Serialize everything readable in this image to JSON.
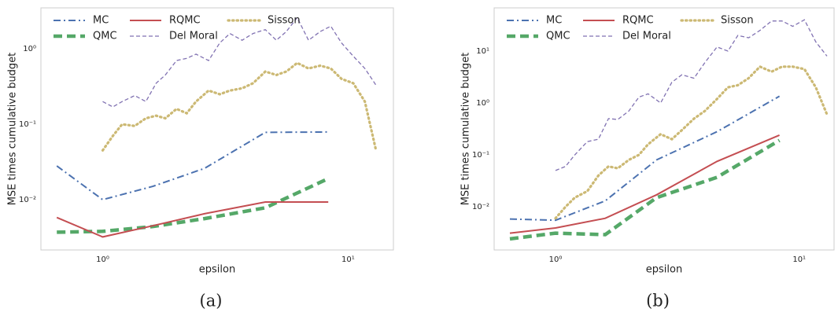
{
  "chart_data": [
    {
      "type": "line",
      "caption": "(a)",
      "xlabel": "epsilon",
      "ylabel": "MSE times cumulative budget",
      "xscale": "log",
      "yscale": "log",
      "xlim": [
        0.56,
        15.3
      ],
      "ylim": [
        0.00215,
        3.5
      ],
      "xticks": [
        {
          "value": 1,
          "label": "10⁰"
        },
        {
          "value": 10,
          "label": "10¹"
        }
      ],
      "yticks": [
        {
          "value": 0.01,
          "label": "10⁻²"
        },
        {
          "value": 0.1,
          "label": "10⁻¹"
        },
        {
          "value": 1,
          "label": "10⁰"
        }
      ],
      "grid": false,
      "legend": "upper left",
      "series": [
        {
          "name": "MC",
          "color": "#4c72b0",
          "linestyle": "dashdot",
          "x": [
            0.65,
            1.0,
            1.6,
            2.6,
            4.6,
            8.3
          ],
          "values": [
            0.028,
            0.01,
            0.015,
            0.026,
            0.078,
            0.079
          ]
        },
        {
          "name": "QMC",
          "color": "#55a868",
          "linestyle": "thickdash",
          "x": [
            0.65,
            1.0,
            1.6,
            2.6,
            4.6,
            8.3
          ],
          "values": [
            0.0037,
            0.0038,
            0.0044,
            0.0056,
            0.0078,
            0.019
          ]
        },
        {
          "name": "RQMC",
          "color": "#c44e52",
          "linestyle": "solid",
          "x": [
            0.65,
            1.0,
            1.6,
            2.6,
            4.6,
            8.3
          ],
          "values": [
            0.0058,
            0.0032,
            0.0045,
            0.0065,
            0.0093,
            0.0093
          ]
        },
        {
          "name": "Del Moral",
          "color": "#8172b2",
          "linestyle": "dash",
          "x": [
            1.0,
            1.1,
            1.2,
            1.35,
            1.5,
            1.65,
            1.8,
            2.0,
            2.2,
            2.4,
            2.7,
            3.0,
            3.3,
            3.7,
            4.1,
            4.6,
            5.1,
            5.6,
            6.2,
            6.9,
            7.7,
            8.5,
            9.4,
            10.5,
            11.7,
            13
          ],
          "values": [
            0.2,
            0.17,
            0.2,
            0.24,
            0.2,
            0.35,
            0.45,
            0.7,
            0.75,
            0.85,
            0.7,
            1.2,
            1.6,
            1.3,
            1.6,
            1.8,
            1.3,
            1.7,
            2.6,
            1.3,
            1.7,
            2.0,
            1.2,
            0.8,
            0.55,
            0.33
          ]
        },
        {
          "name": "Sisson",
          "color": "#ccb974",
          "linestyle": "dot",
          "x": [
            1.0,
            1.1,
            1.2,
            1.35,
            1.5,
            1.65,
            1.8,
            2.0,
            2.2,
            2.4,
            2.7,
            3.0,
            3.3,
            3.7,
            4.1,
            4.6,
            5.1,
            5.6,
            6.2,
            6.9,
            7.7,
            8.5,
            9.4,
            10.5,
            11.7,
            13
          ],
          "values": [
            0.045,
            0.07,
            0.1,
            0.095,
            0.12,
            0.13,
            0.12,
            0.16,
            0.14,
            0.2,
            0.28,
            0.25,
            0.28,
            0.3,
            0.35,
            0.5,
            0.45,
            0.5,
            0.65,
            0.55,
            0.6,
            0.55,
            0.4,
            0.35,
            0.2,
            0.045
          ]
        }
      ]
    },
    {
      "type": "line",
      "caption": "(b)",
      "xlabel": "epsilon",
      "ylabel": "MSE times cumulative budget",
      "xscale": "log",
      "yscale": "log",
      "xlim": [
        0.56,
        13.9
      ],
      "ylim": [
        0.00147,
        68
      ],
      "xticks": [
        {
          "value": 1,
          "label": "10⁰"
        },
        {
          "value": 10,
          "label": "10¹"
        }
      ],
      "yticks": [
        {
          "value": 0.01,
          "label": "10⁻²"
        },
        {
          "value": 0.1,
          "label": "10⁻¹"
        },
        {
          "value": 1,
          "label": "10⁰"
        },
        {
          "value": 10,
          "label": "10¹"
        }
      ],
      "grid": false,
      "legend": "upper left",
      "series": [
        {
          "name": "MC",
          "color": "#4c72b0",
          "linestyle": "dashdot",
          "x": [
            0.65,
            1.0,
            1.6,
            2.6,
            4.6,
            8.3
          ],
          "values": [
            0.0058,
            0.0055,
            0.013,
            0.08,
            0.28,
            1.35
          ]
        },
        {
          "name": "QMC",
          "color": "#55a868",
          "linestyle": "thickdash",
          "x": [
            0.65,
            1.0,
            1.6,
            2.6,
            4.6,
            8.3
          ],
          "values": [
            0.0024,
            0.0031,
            0.0029,
            0.015,
            0.037,
            0.19
          ]
        },
        {
          "name": "RQMC",
          "color": "#c44e52",
          "linestyle": "solid",
          "x": [
            0.65,
            1.0,
            1.6,
            2.6,
            4.6,
            8.3
          ],
          "values": [
            0.0031,
            0.0039,
            0.006,
            0.017,
            0.075,
            0.24
          ]
        },
        {
          "name": "Del Moral",
          "color": "#8172b2",
          "linestyle": "dash",
          "x": [
            1.0,
            1.1,
            1.2,
            1.35,
            1.5,
            1.65,
            1.8,
            2.0,
            2.2,
            2.4,
            2.7,
            3.0,
            3.3,
            3.7,
            4.1,
            4.6,
            5.1,
            5.6,
            6.2,
            6.9,
            7.7,
            8.5,
            9.4,
            10.5,
            11.7,
            13
          ],
          "values": [
            0.05,
            0.06,
            0.1,
            0.18,
            0.2,
            0.5,
            0.48,
            0.7,
            1.3,
            1.5,
            1.0,
            2.5,
            3.5,
            3.0,
            6,
            12,
            10,
            20,
            18,
            25,
            38,
            38,
            30,
            40,
            15,
            8
          ]
        },
        {
          "name": "Sisson",
          "color": "#ccb974",
          "linestyle": "dot",
          "x": [
            1.0,
            1.1,
            1.2,
            1.35,
            1.5,
            1.65,
            1.8,
            2.0,
            2.2,
            2.4,
            2.7,
            3.0,
            3.3,
            3.7,
            4.1,
            4.6,
            5.1,
            5.6,
            6.2,
            6.9,
            7.7,
            8.5,
            9.4,
            10.5,
            11.7,
            13
          ],
          "values": [
            0.006,
            0.01,
            0.015,
            0.02,
            0.04,
            0.06,
            0.055,
            0.08,
            0.1,
            0.16,
            0.25,
            0.2,
            0.3,
            0.5,
            0.7,
            1.2,
            2.0,
            2.2,
            3,
            5,
            4,
            5,
            5,
            4.5,
            2,
            0.6
          ]
        }
      ]
    }
  ]
}
